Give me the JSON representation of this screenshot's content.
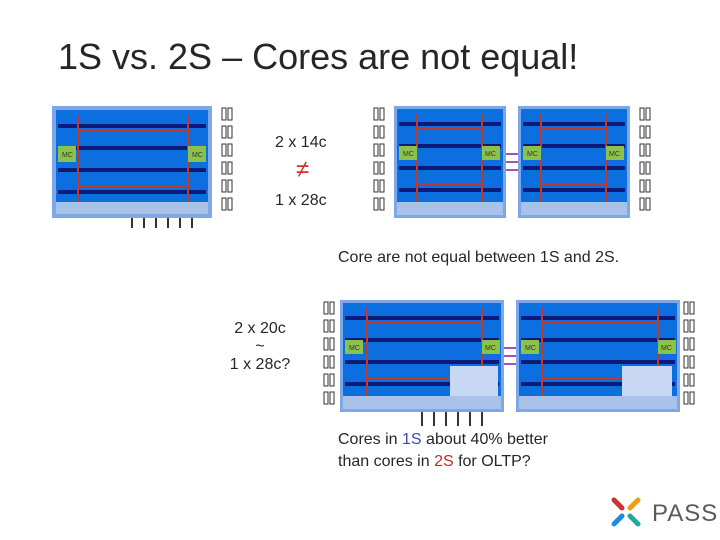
{
  "slide": {
    "title": "1S vs. 2S – Cores are not equal!",
    "compare_top": {
      "left": "2 x 14c",
      "symbol": "≠",
      "right": "1 x 28c"
    },
    "note": "Core are not equal between 1S and 2S.",
    "compare_bottom": {
      "line1": "2 x 20c",
      "line2": "~",
      "line3": "1 x 28c?"
    },
    "conclusion": {
      "pre": "Cores in ",
      "s1": "1S",
      "mid": " about 40% better",
      "line2_pre": "than cores in ",
      "s2": "2S",
      "post": " for OLTP?"
    },
    "chip_label": "MC",
    "logo": "PASS"
  },
  "colors": {
    "die": "#4a78d0",
    "core": "#0b6fe0",
    "navy": "#0d1a7a",
    "ring": "#c0392b",
    "mc": "#8bc34a",
    "link": "#a24fc0"
  }
}
